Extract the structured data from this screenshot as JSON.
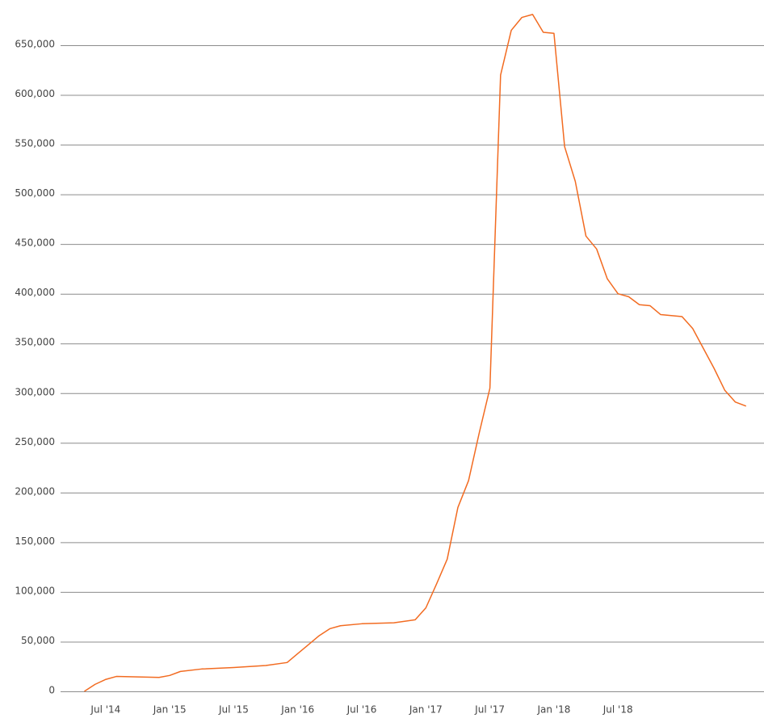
{
  "chart_data": {
    "type": "line",
    "x": [
      "2014-05",
      "2014-06",
      "2014-07",
      "2014-08",
      "2014-10",
      "2014-12",
      "2015-01",
      "2015-02",
      "2015-04",
      "2015-07",
      "2015-10",
      "2015-12",
      "2016-01",
      "2016-02",
      "2016-03",
      "2016-04",
      "2016-05",
      "2016-07",
      "2016-10",
      "2016-12",
      "2017-01",
      "2017-02",
      "2017-03",
      "2017-04",
      "2017-05",
      "2017-06",
      "2017-07",
      "2017-08",
      "2017-09",
      "2017-10",
      "2017-11",
      "2017-12",
      "2018-01",
      "2018-02",
      "2018-03",
      "2018-04",
      "2018-05",
      "2018-06",
      "2018-07",
      "2018-08",
      "2018-09",
      "2018-10",
      "2018-11",
      "2018-12",
      "2019-01",
      "2019-02",
      "2019-03",
      "2019-04",
      "2019-05",
      "2019-06",
      "2019-07"
    ],
    "series": [
      {
        "color": "#f26b21",
        "values": [
          0,
          7000,
          12000,
          15000,
          14500,
          14000,
          16000,
          20000,
          22500,
          24000,
          26000,
          29000,
          38000,
          47000,
          56000,
          63000,
          66000,
          68000,
          69000,
          72000,
          84000,
          108000,
          133000,
          185000,
          212000,
          260000,
          305000,
          620000,
          665000,
          678000,
          681000,
          663000,
          662000,
          548000,
          513000,
          458000,
          445000,
          415000,
          400000,
          397000,
          389000,
          388000,
          379000,
          378000,
          377000,
          365000,
          345000,
          325000,
          303000,
          291000,
          287000
        ]
      }
    ],
    "xlim": [
      "2014-03",
      "2019-08"
    ],
    "xticks": [
      {
        "value": "2014-07",
        "label": "Jul '14"
      },
      {
        "value": "2015-01",
        "label": "Jan '15"
      },
      {
        "value": "2015-07",
        "label": "Jul '15"
      },
      {
        "value": "2016-01",
        "label": "Jan '16"
      },
      {
        "value": "2016-07",
        "label": "Jul '16"
      },
      {
        "value": "2017-01",
        "label": "Jan '17"
      },
      {
        "value": "2017-07",
        "label": "Jul '17"
      },
      {
        "value": "2018-01",
        "label": "Jan '18"
      },
      {
        "value": "2018-07",
        "label": "Jul '18"
      }
    ],
    "ylim": [
      0,
      650000
    ],
    "yticks": [
      0,
      {
        "value": 50000,
        "label": "50,000"
      },
      {
        "value": 100000,
        "label": "100,000"
      },
      {
        "value": 150000,
        "label": "150,000"
      },
      {
        "value": 200000,
        "label": "200,000"
      },
      {
        "value": 250000,
        "label": "250,000"
      },
      {
        "value": 300000,
        "label": "300,000"
      },
      {
        "value": 350000,
        "label": "350,000"
      },
      {
        "value": 400000,
        "label": "400,000"
      },
      {
        "value": 450000,
        "label": "450,000"
      },
      {
        "value": 500000,
        "label": "500,000"
      },
      {
        "value": 550000,
        "label": "550,000"
      },
      {
        "value": 600000,
        "label": "600,000"
      },
      {
        "value": 650000,
        "label": "650,000"
      }
    ],
    "grid": true
  }
}
